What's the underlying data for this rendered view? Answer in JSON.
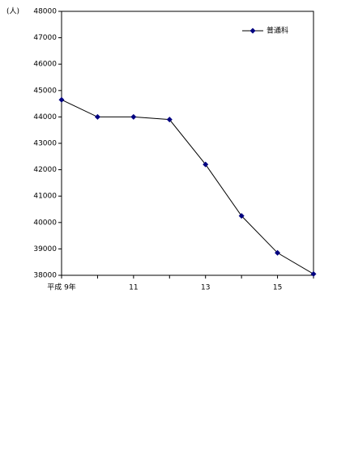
{
  "chart_data": {
    "type": "line",
    "y_unit": "(人)",
    "categories": [
      "平成 9年",
      null,
      "11",
      null,
      "13",
      null,
      "15",
      null
    ],
    "series": [
      {
        "name": "普通科",
        "color": "#000080",
        "values": [
          44650,
          44000,
          44000,
          43900,
          42200,
          40250,
          38850,
          38050
        ]
      }
    ],
    "ylim": [
      38000,
      48000
    ],
    "yticks": [
      38000,
      39000,
      40000,
      41000,
      42000,
      43000,
      44000,
      45000,
      46000,
      47000,
      48000
    ],
    "legend": "top-right"
  }
}
